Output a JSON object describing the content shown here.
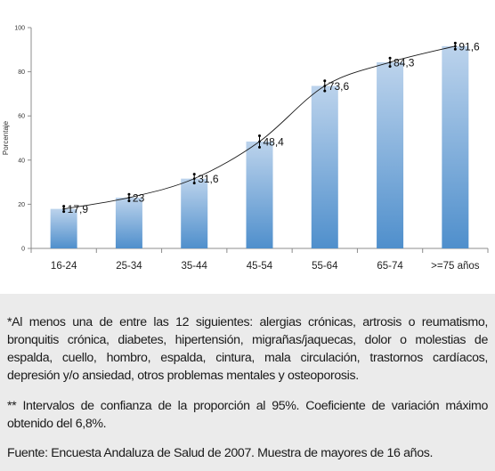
{
  "chart_data": {
    "type": "bar",
    "categories": [
      "16-24",
      "25-34",
      "35-44",
      "45-54",
      "55-64",
      "65-74",
      ">=75 años"
    ],
    "values": [
      17.9,
      23,
      31.6,
      48.4,
      73.6,
      84.3,
      91.6
    ],
    "value_labels": [
      "17,9",
      "23",
      "31,6",
      "48,4",
      "73,6",
      "84,3",
      "91,6"
    ],
    "error_margins": [
      1.2,
      1.5,
      2.0,
      2.6,
      2.3,
      1.9,
      1.4
    ],
    "trend_line": true,
    "ylabel": "Porcentaje",
    "xlabel": "",
    "ylim": [
      0,
      100
    ],
    "yticks": [
      "0",
      "20",
      "40",
      "60",
      "80",
      "100"
    ],
    "grid": false,
    "bar_color_top": "#bcd3ec",
    "bar_color_bottom": "#4f8fcc"
  },
  "notes": {
    "note1": "*Al menos una de entre las 12 siguientes: alergias crónicas, artrosis o reumatismo, bronquitis crónica, diabetes, hipertensión, migrañas/jaquecas, dolor o molestias de espalda, cuello, hombro, espalda, cintura, mala circulación, trastornos cardíacos, depresión y/o ansiedad, otros problemas mentales y osteoporosis.",
    "note2": "** Intervalos de confianza de la proporción al 95%. Coeficiente de variación máximo obtenido del 6,8%.",
    "note3": "Fuente: Encuesta Andaluza de Salud de 2007. Muestra de mayores de 16 años."
  }
}
